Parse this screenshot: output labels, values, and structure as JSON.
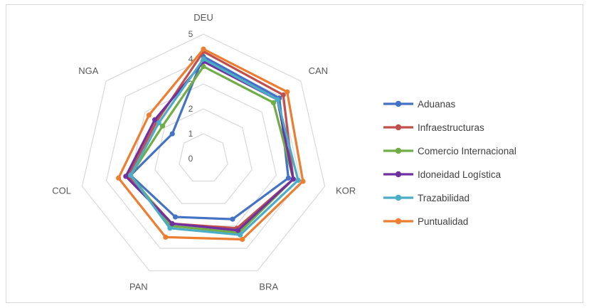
{
  "chart_data": {
    "type": "radar",
    "categories": [
      "DEU",
      "CAN",
      "KOR",
      "BRA",
      "PAN",
      "COL",
      "NGA"
    ],
    "rlim": [
      0,
      5
    ],
    "ticks": [
      "0",
      "1",
      "2",
      "3",
      "4",
      "5"
    ],
    "grid": true,
    "legend_position": "right",
    "series": [
      {
        "name": "Aduanas",
        "color": "#4472C4",
        "values": [
          4.1,
          3.9,
          3.5,
          2.7,
          2.6,
          3.0,
          1.6
        ]
      },
      {
        "name": "Infraestructuras",
        "color": "#C0504D",
        "values": [
          4.3,
          4.1,
          3.7,
          3.1,
          2.9,
          3.1,
          2.4
        ]
      },
      {
        "name": "Comercio Internacional",
        "color": "#70AD47",
        "values": [
          3.7,
          3.6,
          3.7,
          3.3,
          3.0,
          3.0,
          2.1
        ]
      },
      {
        "name": "Idoneidad Logística",
        "color": "#7030A0",
        "values": [
          3.9,
          3.8,
          3.7,
          3.2,
          2.9,
          3.2,
          2.5
        ]
      },
      {
        "name": "Trazabilidad",
        "color": "#4BACC6",
        "values": [
          4.0,
          3.8,
          3.9,
          3.4,
          3.1,
          3.0,
          2.3
        ]
      },
      {
        "name": "Puntualidad",
        "color": "#ED7D31",
        "values": [
          4.4,
          4.3,
          4.1,
          3.6,
          3.5,
          3.5,
          2.8
        ]
      }
    ]
  }
}
